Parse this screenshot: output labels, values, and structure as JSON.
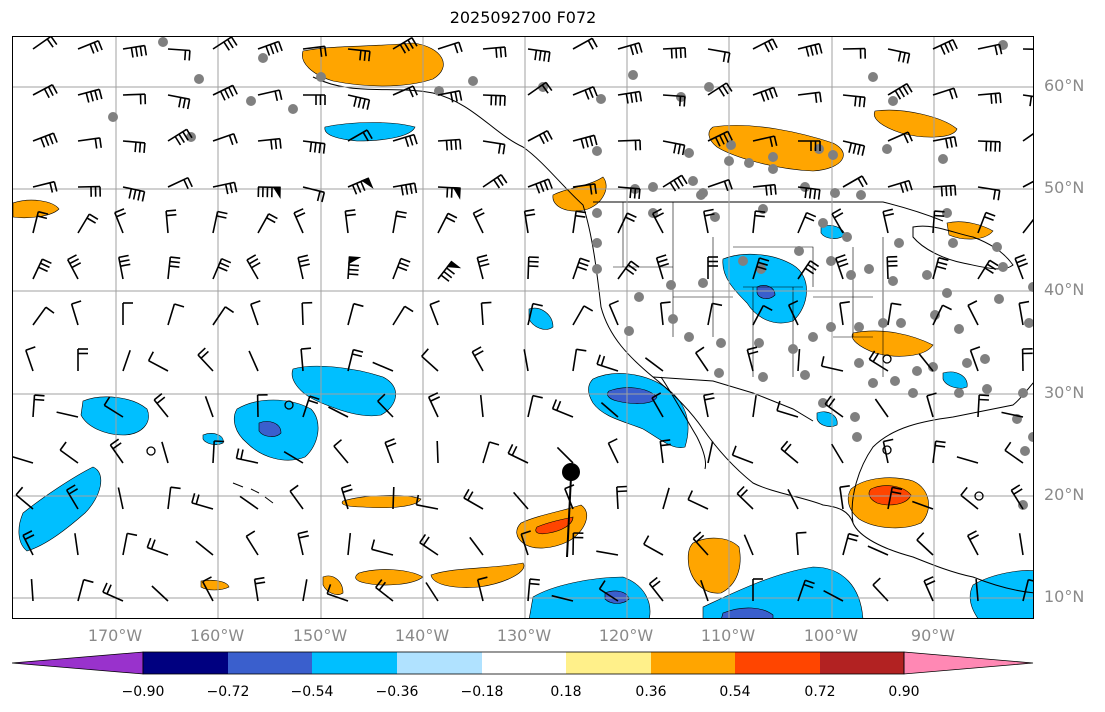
{
  "title": "2025092700 F072",
  "latitude_labels": [
    "60°N",
    "50°N",
    "40°N",
    "30°N",
    "20°N",
    "10°N"
  ],
  "longitude_labels": [
    "170°W",
    "160°W",
    "150°W",
    "140°W",
    "130°W",
    "120°W",
    "110°W",
    "100°W",
    "90°W"
  ],
  "colorbar": {
    "tick_labels": [
      "−0.90",
      "−0.72",
      "−0.54",
      "−0.36",
      "−0.18",
      "0.18",
      "0.36",
      "0.54",
      "0.72",
      "0.90"
    ],
    "colors": [
      "#9932cc",
      "#000080",
      "#3a5fcd",
      "#00bfff",
      "#b0e2ff",
      "#ffffff",
      "#fff08a",
      "#ffa500",
      "#ff4500",
      "#b22222",
      "#ff88b4"
    ]
  },
  "map": {
    "lon_range": [
      -180,
      -80
    ],
    "lat_range": [
      8,
      65
    ],
    "gridlines": true,
    "field_colors": {
      "negative": "#00bfff",
      "negative_strong": "#3a5fcd",
      "positive": "#ffa500",
      "positive_strong": "#ff4500"
    },
    "station_markers": "gray-dots",
    "wind_barbs": true
  }
}
